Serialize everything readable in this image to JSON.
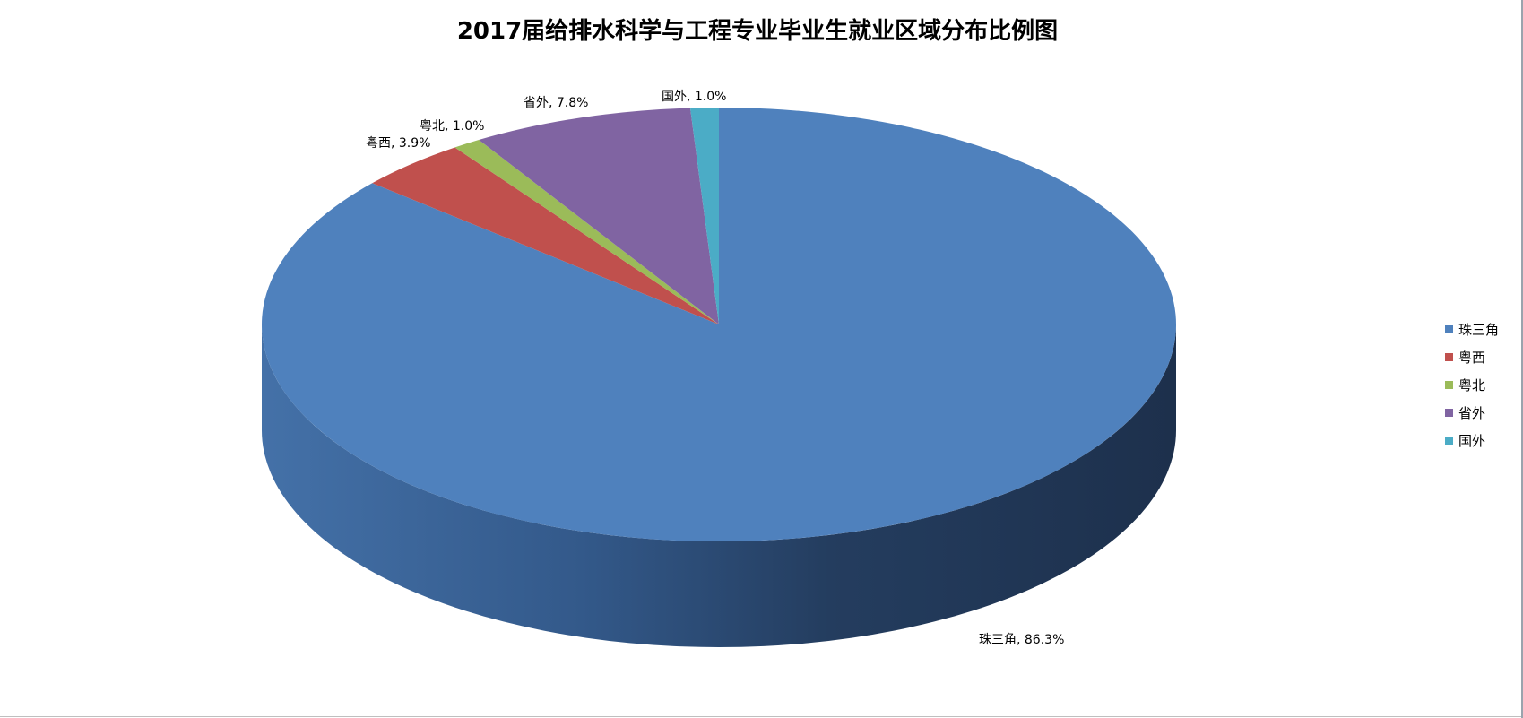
{
  "chart_data": {
    "type": "pie",
    "style": "3d",
    "title": "2017届给排水科学与工程专业毕业生就业区域分布比例图",
    "slices": [
      {
        "label": "珠三角",
        "value": 86.3,
        "display": "86.3%",
        "color": "#4F81BD"
      },
      {
        "label": "粤西",
        "value": 3.9,
        "display": "3.9%",
        "color": "#C0504D"
      },
      {
        "label": "粤北",
        "value": 1.0,
        "display": "1.0%",
        "color": "#9BBB59"
      },
      {
        "label": "省外",
        "value": 7.8,
        "display": "7.8%",
        "color": "#8064A2"
      },
      {
        "label": "国外",
        "value": 1.0,
        "display": "1.0%",
        "color": "#4BACC6"
      }
    ],
    "legend_position": "right"
  }
}
